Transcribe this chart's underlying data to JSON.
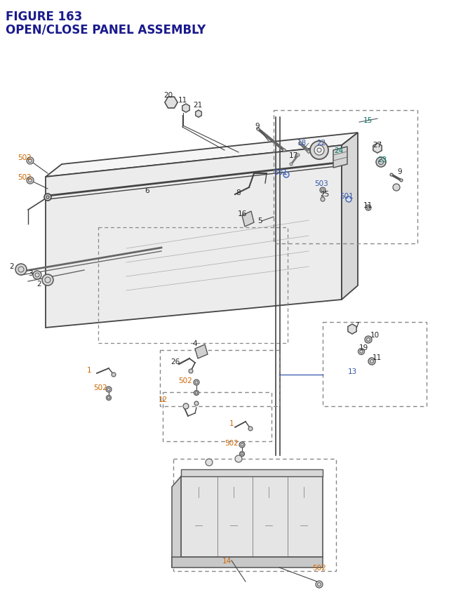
{
  "title_line1": "FIGURE 163",
  "title_line2": "OPEN/CLOSE PANEL ASSEMBLY",
  "title_color": "#1a1a8c",
  "title_fontsize": 12,
  "bg_color": "#ffffff",
  "figsize": [
    6.4,
    8.62
  ],
  "dpi": 100,
  "line_color": "#444444",
  "dash_color": "#666666",
  "orange": "#cc6600",
  "blue": "#3355aa",
  "teal": "#007766"
}
